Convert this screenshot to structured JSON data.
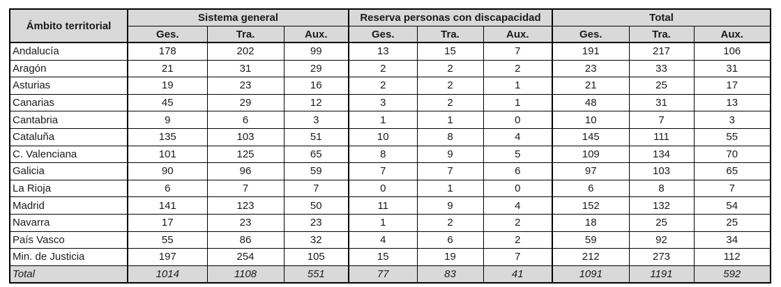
{
  "table": {
    "corner_header": "Ámbito territorial",
    "groups": [
      {
        "label": "Sistema general"
      },
      {
        "label": "Reserva personas con discapacidad"
      },
      {
        "label": "Total"
      }
    ],
    "subheaders": [
      "Ges.",
      "Tra.",
      "Aux."
    ],
    "rows": [
      {
        "label": "Andalucía",
        "values": [
          178,
          202,
          99,
          13,
          15,
          7,
          191,
          217,
          106
        ]
      },
      {
        "label": "Aragón",
        "values": [
          21,
          31,
          29,
          2,
          2,
          2,
          23,
          33,
          31
        ]
      },
      {
        "label": "Asturias",
        "values": [
          19,
          23,
          16,
          2,
          2,
          1,
          21,
          25,
          17
        ]
      },
      {
        "label": "Canarias",
        "values": [
          45,
          29,
          12,
          3,
          2,
          1,
          48,
          31,
          13
        ]
      },
      {
        "label": "Cantabria",
        "values": [
          9,
          6,
          3,
          1,
          1,
          0,
          10,
          7,
          3
        ]
      },
      {
        "label": "Cataluña",
        "values": [
          135,
          103,
          51,
          10,
          8,
          4,
          145,
          111,
          55
        ]
      },
      {
        "label": "C. Valenciana",
        "values": [
          101,
          125,
          65,
          8,
          9,
          5,
          109,
          134,
          70
        ]
      },
      {
        "label": "Galicia",
        "values": [
          90,
          96,
          59,
          7,
          7,
          6,
          97,
          103,
          65
        ]
      },
      {
        "label": "La Rioja",
        "values": [
          6,
          7,
          7,
          0,
          1,
          0,
          6,
          8,
          7
        ]
      },
      {
        "label": "Madrid",
        "values": [
          141,
          123,
          50,
          11,
          9,
          4,
          152,
          132,
          54
        ]
      },
      {
        "label": "Navarra",
        "values": [
          17,
          23,
          23,
          1,
          2,
          2,
          18,
          25,
          25
        ]
      },
      {
        "label": "País Vasco",
        "values": [
          55,
          86,
          32,
          4,
          6,
          2,
          59,
          92,
          34
        ]
      },
      {
        "label": "Min. de Justicia",
        "values": [
          197,
          254,
          105,
          15,
          19,
          7,
          212,
          273,
          112
        ]
      }
    ],
    "total_row": {
      "label": "Total",
      "values": [
        1014,
        1108,
        551,
        77,
        83,
        41,
        1091,
        1191,
        592
      ]
    },
    "colors": {
      "header_bg": "#d9d9d9",
      "total_row_bg": "#d9d9d9",
      "border": "#000000",
      "text": "#1a1a1a"
    }
  }
}
